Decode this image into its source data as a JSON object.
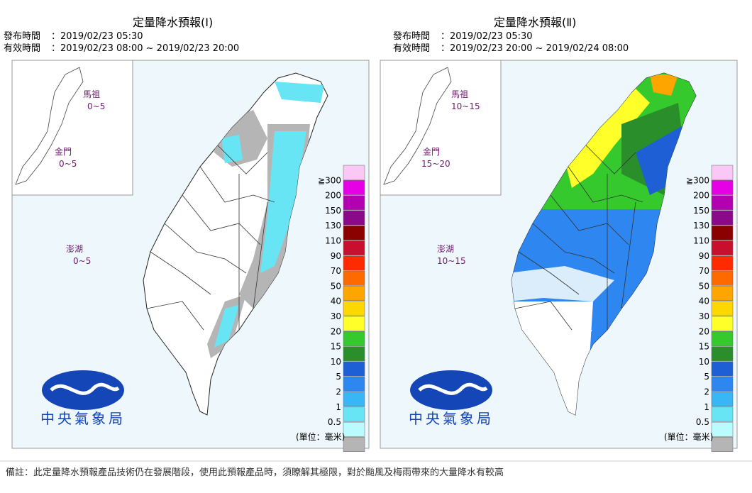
{
  "panels": [
    {
      "title": "定量降水預報(Ⅰ)",
      "issued_label": "發布時間",
      "issued": "：2019/02/23 05:30",
      "valid_label": "有效時間",
      "valid": "：2019/02/23 08:00 ~ 2019/02/23 20:00",
      "islands": [
        {
          "name": "馬祖",
          "range": "0~5"
        },
        {
          "name": "金門",
          "range": "0~5"
        },
        {
          "name": "澎湖",
          "range": "0~5"
        }
      ]
    },
    {
      "title": "定量降水預報(Ⅱ)",
      "issued_label": "發布時間",
      "issued": "：2019/02/23 05:30",
      "valid_label": "有效時間",
      "valid": "：2019/02/23 20:00 ~ 2019/02/24 08:00",
      "islands": [
        {
          "name": "馬祖",
          "range": "10~15"
        },
        {
          "name": "金門",
          "range": "15~20"
        },
        {
          "name": "澎湖",
          "range": "10~15"
        }
      ]
    }
  ],
  "legend": {
    "labels": [
      "≧300",
      "200",
      "150",
      "130",
      "110",
      "90",
      "70",
      "50",
      "40",
      "30",
      "20",
      "15",
      "10",
      "5",
      "2",
      "1",
      "0.5"
    ],
    "colors": [
      "#f9c8f4",
      "#e600e6",
      "#b200b2",
      "#8a0a8a",
      "#8b0000",
      "#c8102e",
      "#ff2a00",
      "#ff6a00",
      "#ffa500",
      "#ffd700",
      "#ffff2a",
      "#35c92e",
      "#2a8f2a",
      "#1f5fd6",
      "#2e86f0",
      "#38b6f5",
      "#67e5f5",
      "#b9fbff",
      "#b5b5b5"
    ],
    "unit": "(單位：毫米)"
  },
  "logo": "中央氣象局",
  "footer": "備註：此定量降水預報產品技術仍在發展階段，使用此預報產品時，須瞭解其極限，對於颱風及梅雨帶來的大量降水有較高"
}
